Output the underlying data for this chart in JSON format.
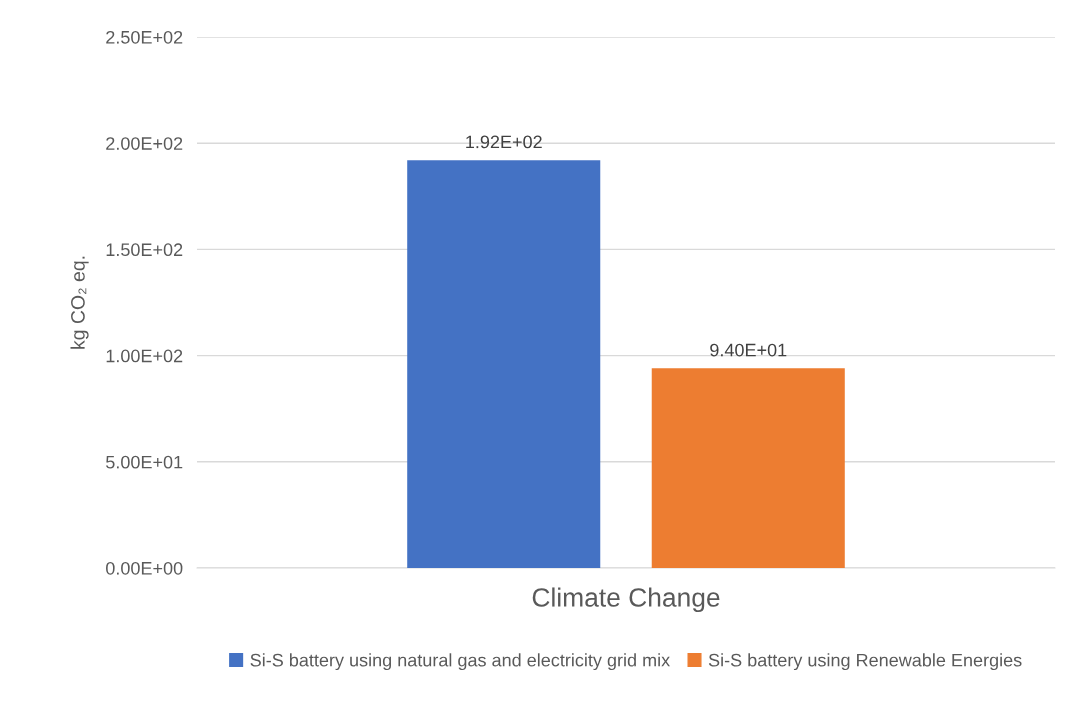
{
  "chart_data": {
    "type": "bar",
    "ylabel": "kg CO₂ eq.",
    "categories": [
      "Climate Change"
    ],
    "series": [
      {
        "name": "Si-S battery using natural gas and electricity grid mix",
        "color": "#4472c4",
        "values": [
          192
        ],
        "value_labels": [
          "1.92E+02"
        ]
      },
      {
        "name": "Si-S battery using Renewable Energies",
        "color": "#ed7d31",
        "values": [
          94
        ],
        "value_labels": [
          "9.40E+01"
        ]
      }
    ],
    "ylim": [
      0,
      250
    ],
    "yticks": [
      {
        "value": 0,
        "label": "0.00E+00"
      },
      {
        "value": 50,
        "label": "5.00E+01"
      },
      {
        "value": 100,
        "label": "1.00E+02"
      },
      {
        "value": 150,
        "label": "1.50E+02"
      },
      {
        "value": 200,
        "label": "2.00E+02"
      },
      {
        "value": 250,
        "label": "2.50E+02"
      }
    ],
    "grid": "y",
    "legend": "bottom"
  }
}
